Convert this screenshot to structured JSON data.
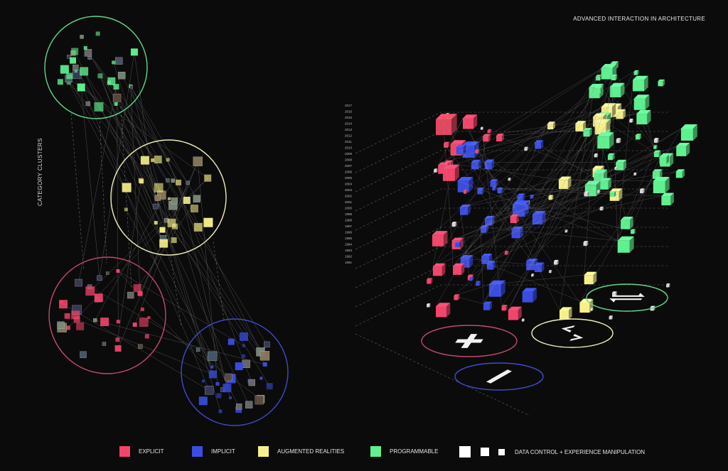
{
  "header": {
    "title": "ADVANCED INTERACTION IN ARCHITECTURE"
  },
  "sidebar": {
    "label": "CATEGORY CLUSTERS"
  },
  "colors": {
    "explicit": "#f2456b",
    "implicit": "#3b4de0",
    "augmented": "#f7f08a",
    "programmable": "#5ff08f",
    "background": "#0b0b0b"
  },
  "clusters": [
    {
      "name": "programmable",
      "ring_color": "#5fd98a"
    },
    {
      "name": "augmented",
      "ring_color": "#efeeb8"
    },
    {
      "name": "explicit",
      "ring_color": "#c24a6a"
    },
    {
      "name": "implicit",
      "ring_color": "#3f4ccf"
    }
  ],
  "timeline": {
    "years": [
      "2017",
      "2016",
      "2015",
      "2014",
      "2013",
      "2012",
      "2011",
      "2010",
      "2009",
      "2008",
      "2007",
      "2006",
      "2005",
      "2004",
      "2003",
      "2002",
      "2001",
      "2000",
      "1999",
      "1998",
      "1997",
      "1996",
      "1995",
      "1994",
      "1993",
      "1992",
      "1991"
    ]
  },
  "symbols": [
    {
      "name": "plus-symbol",
      "ring_color": "#c24a6a",
      "icon": "plus-icon"
    },
    {
      "name": "minus-symbol",
      "ring_color": "#3f4ccf",
      "icon": "minus-icon"
    },
    {
      "name": "lt-gt-symbol",
      "ring_color": "#efeeb8",
      "icon": "less-greater-icon"
    },
    {
      "name": "swap-arrows-symbol",
      "ring_color": "#5fd98a",
      "icon": "swap-arrows-icon"
    }
  ],
  "legend": {
    "items": [
      {
        "label": "EXPLICIT",
        "color": "#f2456b"
      },
      {
        "label": "IMPLICIT",
        "color": "#3b4de0"
      },
      {
        "label": "AUGMENTED REALITIES",
        "color": "#f7f08a"
      },
      {
        "label": "PROGRAMMABLE",
        "color": "#5ff08f"
      }
    ],
    "data_control_label": "DATA CONTROL +  EXPERIENCE MANIPULATION"
  }
}
